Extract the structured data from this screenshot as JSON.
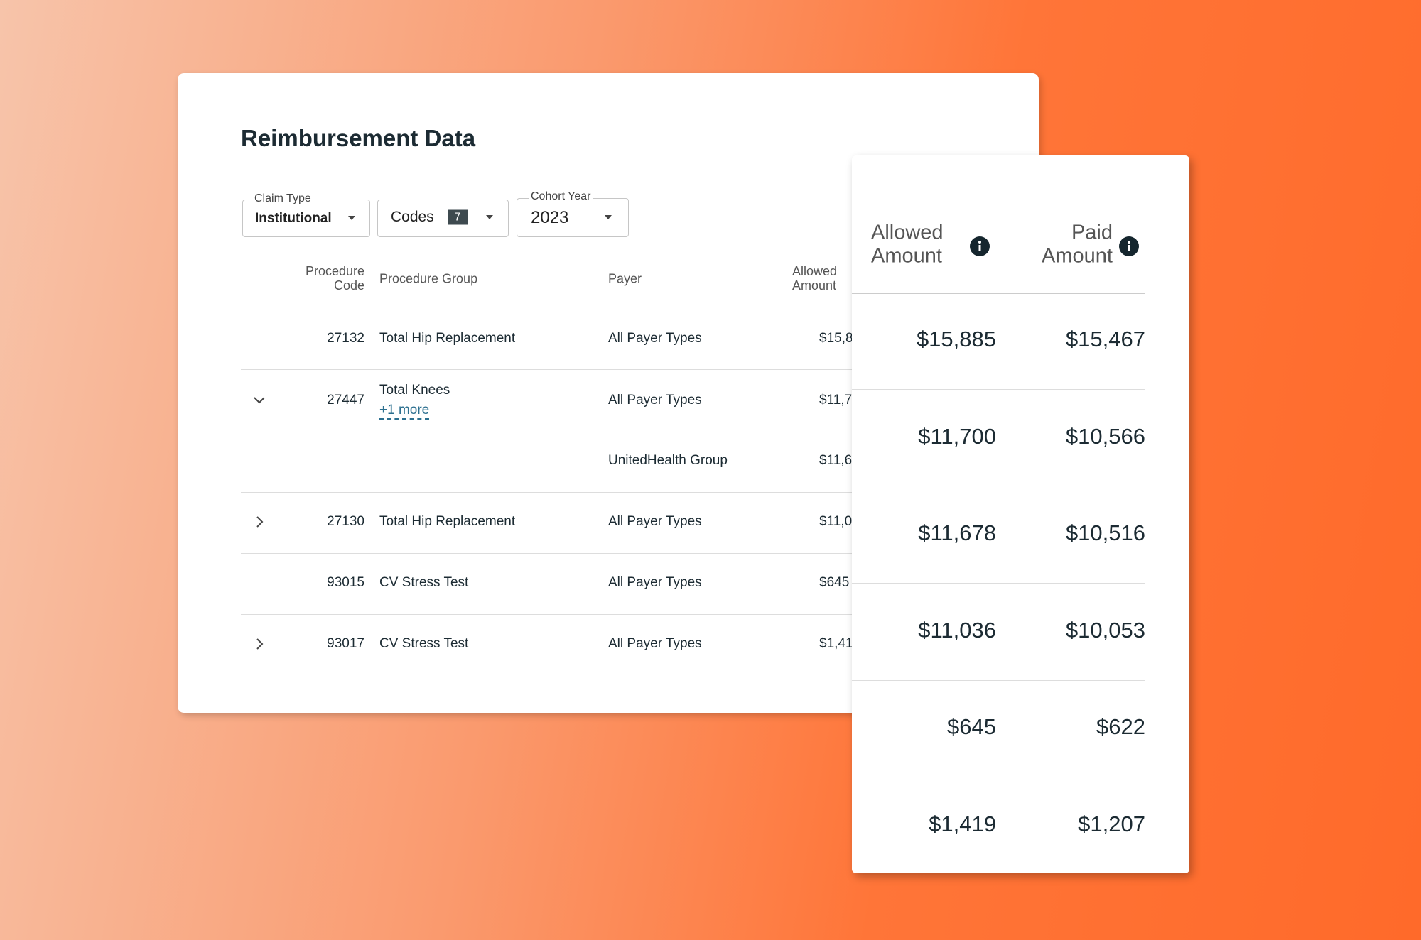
{
  "title": "Reimbursement Data",
  "filters": {
    "claim_type": {
      "label": "Claim Type",
      "value": "Institutional"
    },
    "codes": {
      "label": "Codes",
      "count": "7"
    },
    "cohort_year": {
      "label": "Cohort Year",
      "value": "2023"
    }
  },
  "columns": {
    "code": "Procedure Code",
    "group": "Procedure Group",
    "payer": "Payer",
    "allowed": "Allowed Amount",
    "paid": "Paid Amount"
  },
  "rows": [
    {
      "code": "27132",
      "group": "Total Hip Replacement",
      "payer": "All Payer Types",
      "allowed": "$15,885",
      "paid": "$15,467"
    },
    {
      "code": "27447",
      "group": "Total Knees",
      "more": "+1 more",
      "payer": "All Payer Types",
      "allowed": "$11,700",
      "paid": "$10,566"
    },
    {
      "payer": "UnitedHealth Group",
      "allowed": "$11,678",
      "paid": "$10,516"
    },
    {
      "code": "27130",
      "group": "Total Hip Replacement",
      "payer": "All Payer Types",
      "allowed": "$11,036",
      "paid": "$10,053"
    },
    {
      "code": "93015",
      "group": "CV Stress Test",
      "payer": "All Payer Types",
      "allowed": "$645",
      "paid": "$622"
    },
    {
      "code": "93017",
      "group": "CV Stress Test",
      "payer": "All Payer Types",
      "allowed": "$1,419",
      "paid": "$1,207"
    }
  ]
}
